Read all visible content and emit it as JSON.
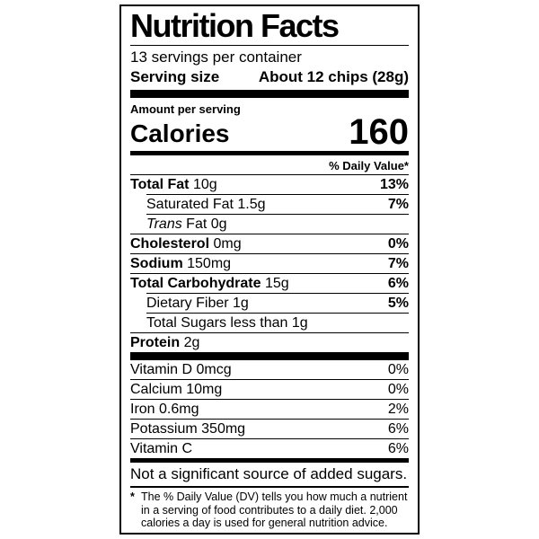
{
  "label": {
    "title": "Nutrition Facts",
    "servings_per_container": "13 servings per container",
    "serving_size": {
      "label": "Serving size",
      "value": "About 12 chips (28g)"
    },
    "amount_per_serving": "Amount per serving",
    "calories": {
      "label": "Calories",
      "value": "160"
    },
    "daily_value_header": "% Daily Value*",
    "nutrients": [
      {
        "name": "Total Fat",
        "amount": "10g",
        "dv": "13%"
      },
      {
        "name": "Saturated Fat",
        "amount": "1.5g",
        "dv": "7%"
      },
      {
        "name_italic": "Trans",
        "name": "Fat",
        "amount": "0g",
        "dv": ""
      },
      {
        "name": "Cholesterol",
        "amount": "0mg",
        "dv": "0%"
      },
      {
        "name": "Sodium",
        "amount": "150mg",
        "dv": "7%"
      },
      {
        "name": "Total Carbohydrate",
        "amount": "15g",
        "dv": "6%"
      },
      {
        "name": "Dietary Fiber",
        "amount": "1g",
        "dv": "5%"
      },
      {
        "name": "Total Sugars",
        "amount": "less than 1g",
        "dv": ""
      },
      {
        "name": "Protein",
        "amount": "2g",
        "dv": ""
      }
    ],
    "micronutrients": [
      {
        "text": "Vitamin D 0mcg",
        "dv": "0%"
      },
      {
        "text": "Calcium 10mg",
        "dv": "0%"
      },
      {
        "text": "Iron 0.6mg",
        "dv": "2%"
      },
      {
        "text": "Potassium 350mg",
        "dv": "6%"
      },
      {
        "text": "Vitamin C",
        "dv": "6%"
      }
    ],
    "not_significant_note": "Not a significant source of added sugars.",
    "footnote_marker": "*",
    "footnote": "The % Daily Value (DV) tells you how much a nutrient in a serving of food contributes to a daily diet. 2,000 calories a day is used for general nutrition advice."
  }
}
